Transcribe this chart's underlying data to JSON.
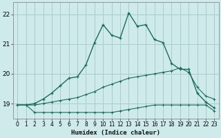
{
  "xlabel": "Humidex (Indice chaleur)",
  "background_color": "#ceeaea",
  "grid_color": "#aacccc",
  "line_color": "#1a6b5a",
  "xlim": [
    -0.5,
    23.5
  ],
  "ylim": [
    18.5,
    22.4
  ],
  "yticks": [
    19,
    20,
    21,
    22
  ],
  "xticks": [
    0,
    1,
    2,
    3,
    4,
    5,
    6,
    7,
    8,
    9,
    10,
    11,
    12,
    13,
    14,
    15,
    16,
    17,
    18,
    19,
    20,
    21,
    22,
    23
  ],
  "series_main_x": [
    0,
    1,
    2,
    3,
    4,
    5,
    6,
    7,
    8,
    9,
    10,
    11,
    12,
    13,
    14,
    15,
    16,
    17,
    18,
    19,
    20,
    21,
    22,
    23
  ],
  "series_main_y": [
    18.95,
    18.95,
    19.0,
    19.15,
    19.35,
    19.6,
    19.85,
    19.9,
    20.3,
    21.05,
    21.65,
    21.3,
    21.2,
    22.05,
    21.6,
    21.65,
    21.15,
    21.05,
    20.35,
    20.15,
    20.15,
    19.35,
    19.05,
    18.85
  ],
  "series_mid_x": [
    0,
    1,
    2,
    3,
    4,
    5,
    6,
    7,
    8,
    9,
    10,
    11,
    12,
    13,
    14,
    15,
    16,
    17,
    18,
    19,
    20,
    21,
    22,
    23
  ],
  "series_mid_y": [
    18.95,
    18.95,
    18.95,
    19.0,
    19.05,
    19.1,
    19.15,
    19.2,
    19.3,
    19.4,
    19.55,
    19.65,
    19.75,
    19.85,
    19.9,
    19.95,
    20.0,
    20.05,
    20.1,
    20.2,
    20.05,
    19.55,
    19.25,
    19.15
  ],
  "series_low_x": [
    0,
    1,
    2,
    3,
    4,
    5,
    6,
    7,
    8,
    9,
    10,
    11,
    12,
    13,
    14,
    15,
    16,
    17,
    18,
    19,
    20,
    21,
    22,
    23
  ],
  "series_low_y": [
    18.95,
    18.95,
    18.7,
    18.7,
    18.7,
    18.7,
    18.7,
    18.7,
    18.7,
    18.7,
    18.7,
    18.7,
    18.75,
    18.8,
    18.85,
    18.9,
    18.95,
    18.95,
    18.95,
    18.95,
    18.95,
    18.95,
    18.95,
    18.75
  ]
}
